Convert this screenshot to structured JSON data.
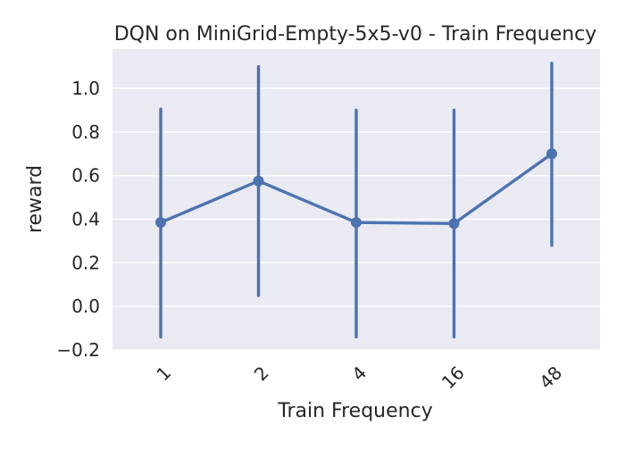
{
  "chart_data": {
    "type": "line",
    "title": "DQN on MiniGrid-Empty-5x5-v0 - Train Frequency",
    "xlabel": "Train Frequency",
    "ylabel": "reward",
    "categories": [
      "1",
      "2",
      "4",
      "16",
      "48"
    ],
    "series": [
      {
        "values": [
          0.385,
          0.575,
          0.385,
          0.38,
          0.7
        ],
        "ci_low": [
          -0.14,
          0.05,
          -0.14,
          -0.14,
          0.28
        ],
        "ci_high": [
          0.905,
          1.1,
          0.9,
          0.9,
          1.115
        ]
      }
    ],
    "yticks": [
      "−0.2",
      "0.0",
      "0.2",
      "0.4",
      "0.6",
      "0.8",
      "1.0"
    ],
    "ylim": [
      -0.2,
      1.18
    ],
    "grid": true,
    "colors": {
      "series": "#4c72b0",
      "plot_background": "#eaeaf2",
      "grid": "#ffffff"
    }
  }
}
